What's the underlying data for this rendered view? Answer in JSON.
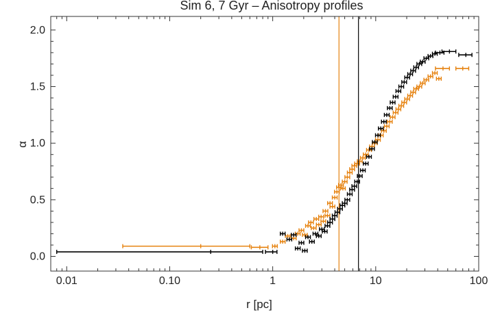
{
  "chart_data": {
    "type": "scatter",
    "title": "Sim 6, 7 Gyr – Anisotropy profiles",
    "xlabel": "r [pc]",
    "ylabel": "α",
    "x_scale": "log",
    "xlim": [
      0.007,
      100
    ],
    "ylim": [
      -0.13,
      2.12
    ],
    "x_ticks": [
      {
        "value": 0.01,
        "label": "0.01"
      },
      {
        "value": 0.1,
        "label": "0.10"
      },
      {
        "value": 1,
        "label": "1"
      },
      {
        "value": 10,
        "label": "10"
      },
      {
        "value": 100,
        "label": "100"
      }
    ],
    "y_ticks": [
      {
        "value": 0.0,
        "label": "0.0"
      },
      {
        "value": 0.5,
        "label": "0.5"
      },
      {
        "value": 1.0,
        "label": "1.0"
      },
      {
        "value": 1.5,
        "label": "1.5"
      },
      {
        "value": 2.0,
        "label": "2.0"
      }
    ],
    "grid": false,
    "series": [
      {
        "color": "#e6820f",
        "vline": 4.4,
        "points": [
          {
            "x": 0.2,
            "y": 0.09,
            "xerr": [
              0.035,
              0.6
            ]
          },
          {
            "x": 0.75,
            "y": 0.08,
            "xerr": [
              0.62,
              0.9
            ]
          },
          {
            "x": 1.05,
            "y": 0.09
          },
          {
            "x": 1.25,
            "y": 0.13
          },
          {
            "x": 1.4,
            "y": 0.18
          },
          {
            "x": 1.6,
            "y": 0.16
          },
          {
            "x": 1.75,
            "y": 0.2
          },
          {
            "x": 1.9,
            "y": 0.23
          },
          {
            "x": 2.05,
            "y": 0.19
          },
          {
            "x": 2.2,
            "y": 0.27
          },
          {
            "x": 2.35,
            "y": 0.3
          },
          {
            "x": 2.5,
            "y": 0.25
          },
          {
            "x": 2.65,
            "y": 0.33
          },
          {
            "x": 2.8,
            "y": 0.28
          },
          {
            "x": 2.95,
            "y": 0.35
          },
          {
            "x": 3.1,
            "y": 0.31
          },
          {
            "x": 3.25,
            "y": 0.4
          },
          {
            "x": 3.4,
            "y": 0.36
          },
          {
            "x": 3.6,
            "y": 0.47
          },
          {
            "x": 3.8,
            "y": 0.44
          },
          {
            "x": 4.0,
            "y": 0.52
          },
          {
            "x": 4.2,
            "y": 0.57
          },
          {
            "x": 4.4,
            "y": 0.61
          },
          {
            "x": 4.6,
            "y": 0.63
          },
          {
            "x": 4.8,
            "y": 0.6
          },
          {
            "x": 5.0,
            "y": 0.66
          },
          {
            "x": 5.3,
            "y": 0.7
          },
          {
            "x": 5.6,
            "y": 0.74
          },
          {
            "x": 5.9,
            "y": 0.77
          },
          {
            "x": 6.2,
            "y": 0.8
          },
          {
            "x": 6.6,
            "y": 0.82
          },
          {
            "x": 7.0,
            "y": 0.84
          },
          {
            "x": 7.5,
            "y": 0.87
          },
          {
            "x": 8.0,
            "y": 0.9
          },
          {
            "x": 8.6,
            "y": 0.94
          },
          {
            "x": 9.2,
            "y": 0.97
          },
          {
            "x": 9.8,
            "y": 1.0
          },
          {
            "x": 10.5,
            "y": 1.03
          },
          {
            "x": 11.2,
            "y": 1.07
          },
          {
            "x": 12.0,
            "y": 1.11
          },
          {
            "x": 12.8,
            "y": 1.15
          },
          {
            "x": 13.7,
            "y": 1.19
          },
          {
            "x": 14.6,
            "y": 1.23
          },
          {
            "x": 15.6,
            "y": 1.27
          },
          {
            "x": 16.6,
            "y": 1.3
          },
          {
            "x": 17.7,
            "y": 1.33
          },
          {
            "x": 18.9,
            "y": 1.36
          },
          {
            "x": 20.2,
            "y": 1.39
          },
          {
            "x": 21.6,
            "y": 1.42
          },
          {
            "x": 23.1,
            "y": 1.45
          },
          {
            "x": 24.7,
            "y": 1.48
          },
          {
            "x": 26.5,
            "y": 1.5
          },
          {
            "x": 28.6,
            "y": 1.53
          },
          {
            "x": 31.0,
            "y": 1.56
          },
          {
            "x": 34.0,
            "y": 1.59
          },
          {
            "x": 37.5,
            "y": 1.62
          },
          {
            "x": 41.0,
            "y": 1.57
          },
          {
            "x": 45.0,
            "y": 1.66,
            "xerr": [
              38,
              52
            ]
          },
          {
            "x": 70.0,
            "y": 1.66,
            "xerr": [
              60,
              80
            ]
          }
        ]
      },
      {
        "color": "#000000",
        "vline": 6.8,
        "points": [
          {
            "x": 0.25,
            "y": 0.04,
            "xerr": [
              0.008,
              0.8
            ]
          },
          {
            "x": 1.0,
            "y": 0.04,
            "xerr": [
              0.85,
              1.1
            ]
          },
          {
            "x": 1.25,
            "y": 0.2
          },
          {
            "x": 1.45,
            "y": 0.15
          },
          {
            "x": 1.6,
            "y": 0.19
          },
          {
            "x": 1.75,
            "y": 0.07
          },
          {
            "x": 1.9,
            "y": 0.12
          },
          {
            "x": 2.05,
            "y": 0.05
          },
          {
            "x": 2.2,
            "y": 0.17
          },
          {
            "x": 2.4,
            "y": 0.13
          },
          {
            "x": 2.6,
            "y": 0.2
          },
          {
            "x": 2.8,
            "y": 0.18
          },
          {
            "x": 3.0,
            "y": 0.24
          },
          {
            "x": 3.2,
            "y": 0.22
          },
          {
            "x": 3.4,
            "y": 0.27
          },
          {
            "x": 3.6,
            "y": 0.3
          },
          {
            "x": 3.8,
            "y": 0.33
          },
          {
            "x": 4.0,
            "y": 0.36
          },
          {
            "x": 4.25,
            "y": 0.39
          },
          {
            "x": 4.5,
            "y": 0.42
          },
          {
            "x": 4.75,
            "y": 0.45
          },
          {
            "x": 5.0,
            "y": 0.47
          },
          {
            "x": 5.3,
            "y": 0.5
          },
          {
            "x": 5.6,
            "y": 0.55
          },
          {
            "x": 5.9,
            "y": 0.59
          },
          {
            "x": 6.2,
            "y": 0.62
          },
          {
            "x": 6.6,
            "y": 0.66
          },
          {
            "x": 7.0,
            "y": 0.71
          },
          {
            "x": 7.5,
            "y": 0.76
          },
          {
            "x": 8.0,
            "y": 0.82
          },
          {
            "x": 8.6,
            "y": 0.88
          },
          {
            "x": 9.2,
            "y": 0.95
          },
          {
            "x": 9.8,
            "y": 1.01
          },
          {
            "x": 10.5,
            "y": 1.07
          },
          {
            "x": 11.2,
            "y": 1.13
          },
          {
            "x": 12.0,
            "y": 1.19
          },
          {
            "x": 12.8,
            "y": 1.25
          },
          {
            "x": 13.7,
            "y": 1.31
          },
          {
            "x": 14.6,
            "y": 1.36
          },
          {
            "x": 15.6,
            "y": 1.41
          },
          {
            "x": 16.6,
            "y": 1.46
          },
          {
            "x": 17.7,
            "y": 1.5
          },
          {
            "x": 18.9,
            "y": 1.54
          },
          {
            "x": 20.2,
            "y": 1.58
          },
          {
            "x": 21.6,
            "y": 1.61
          },
          {
            "x": 23.1,
            "y": 1.64
          },
          {
            "x": 24.7,
            "y": 1.67
          },
          {
            "x": 26.5,
            "y": 1.7
          },
          {
            "x": 28.6,
            "y": 1.72
          },
          {
            "x": 31.0,
            "y": 1.75
          },
          {
            "x": 34.0,
            "y": 1.77
          },
          {
            "x": 37.5,
            "y": 1.79
          },
          {
            "x": 42.0,
            "y": 1.8,
            "xerr": [
              38,
              46
            ]
          },
          {
            "x": 52.0,
            "y": 1.81,
            "xerr": [
              44,
              60
            ]
          },
          {
            "x": 75.0,
            "y": 1.78,
            "xerr": [
              64,
              86
            ]
          }
        ]
      }
    ]
  }
}
